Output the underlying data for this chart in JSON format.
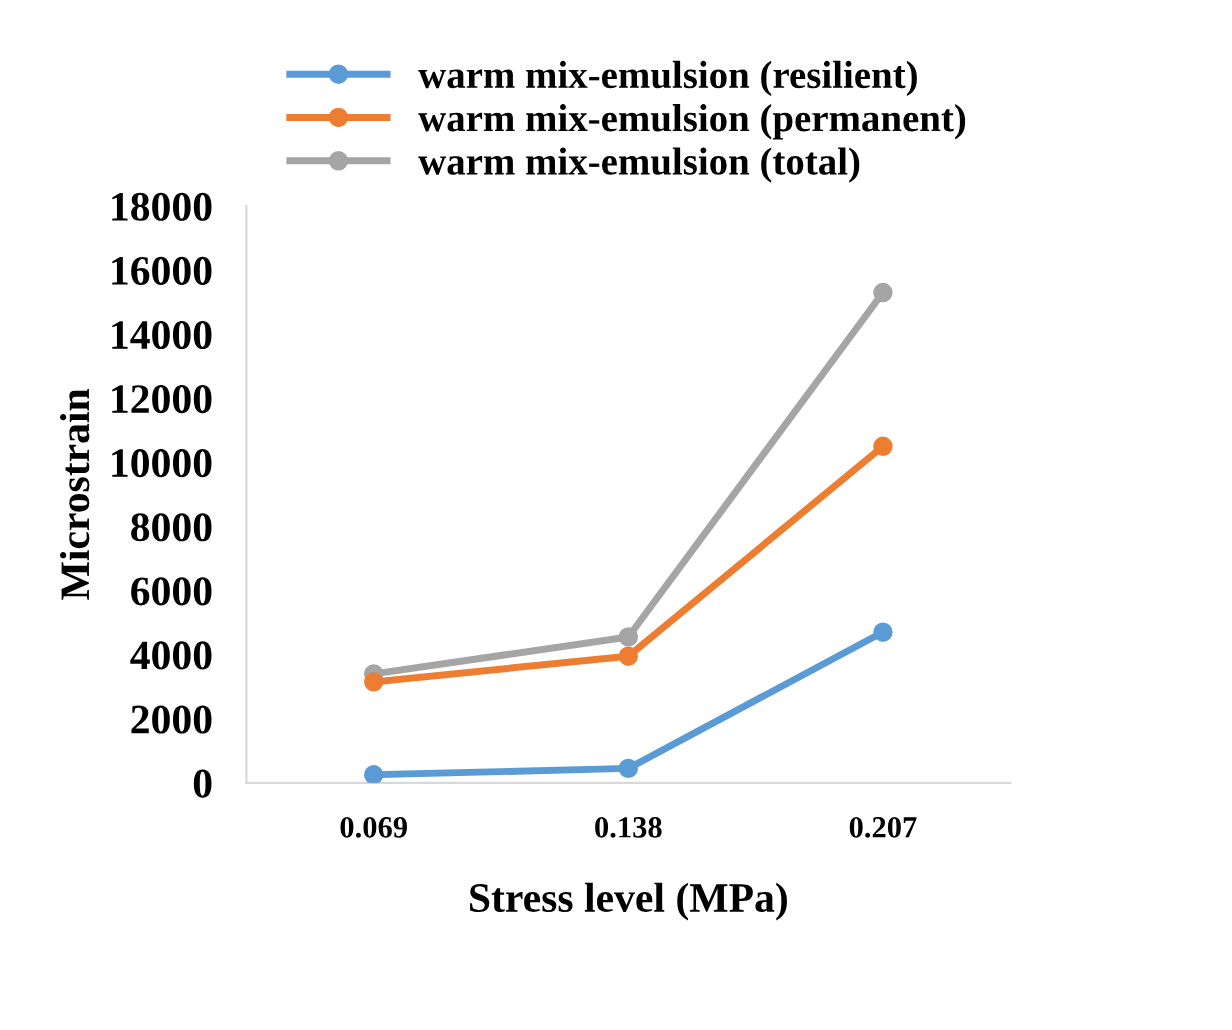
{
  "chart_data": {
    "type": "line",
    "xlabel": "Stress level (MPa)",
    "ylabel": "Microstrain",
    "categories": [
      "0.069",
      "0.138",
      "0.207"
    ],
    "series": [
      {
        "name": "warm mix-emulsion (resilient)",
        "color": "#5b9bd5",
        "values": [
          250,
          450,
          4700
        ]
      },
      {
        "name": "warm mix-emulsion (permanent)",
        "color": "#ed7d31",
        "values": [
          3150,
          3950,
          10500
        ]
      },
      {
        "name": "warm mix-emulsion (total)",
        "color": "#a5a5a5",
        "values": [
          3400,
          4550,
          15300
        ]
      }
    ],
    "ylim": [
      0,
      18000
    ],
    "yticks": [
      0,
      2000,
      4000,
      6000,
      8000,
      10000,
      12000,
      14000,
      16000,
      18000
    ],
    "grid": false,
    "legend": "top",
    "marker": "circle",
    "line_style": "solid"
  }
}
